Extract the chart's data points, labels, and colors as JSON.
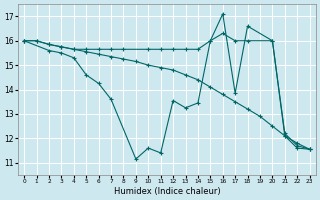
{
  "xlabel": "Humidex (Indice chaleur)",
  "bg_color": "#cee8f0",
  "grid_color": "#ffffff",
  "line_color": "#006666",
  "xlim": [
    -0.5,
    23.5
  ],
  "ylim": [
    10.5,
    17.5
  ],
  "xticks": [
    0,
    1,
    2,
    3,
    4,
    5,
    6,
    7,
    8,
    9,
    10,
    11,
    12,
    13,
    14,
    15,
    16,
    17,
    18,
    19,
    20,
    21,
    22,
    23
  ],
  "yticks": [
    11,
    12,
    13,
    14,
    15,
    16,
    17
  ],
  "line1_x": [
    0,
    1,
    2,
    3,
    4,
    5,
    6,
    7,
    8,
    9,
    10,
    11,
    12,
    13,
    14,
    15,
    16,
    17,
    18,
    19,
    20,
    21,
    22,
    23
  ],
  "line1_y": [
    16,
    16,
    15.85,
    15.75,
    15.65,
    15.55,
    15.45,
    15.35,
    15.25,
    15.15,
    15.0,
    14.9,
    14.8,
    14.6,
    14.4,
    14.1,
    13.8,
    13.5,
    13.2,
    12.9,
    12.5,
    12.1,
    11.8,
    11.55
  ],
  "line2_x": [
    0,
    2,
    3,
    4,
    5,
    6,
    7,
    9,
    10,
    11,
    12,
    13,
    14,
    15,
    16,
    17,
    18,
    20,
    21,
    22,
    23
  ],
  "line2_y": [
    16,
    15.6,
    15.5,
    15.3,
    14.6,
    14.25,
    13.6,
    11.15,
    11.6,
    11.4,
    13.55,
    13.25,
    13.45,
    16.0,
    17.1,
    13.85,
    16.6,
    16.0,
    12.1,
    11.6,
    11.55
  ],
  "line3_x": [
    0,
    1,
    2,
    3,
    4,
    5,
    6,
    7,
    8,
    10,
    11,
    12,
    13,
    14,
    15,
    16,
    17,
    18,
    20,
    21,
    22,
    23
  ],
  "line3_y": [
    16,
    16,
    15.85,
    15.75,
    15.65,
    15.65,
    15.65,
    15.65,
    15.65,
    15.65,
    15.65,
    15.65,
    15.65,
    15.65,
    16.0,
    16.3,
    16.0,
    16.0,
    16.0,
    12.2,
    11.7,
    11.55
  ]
}
